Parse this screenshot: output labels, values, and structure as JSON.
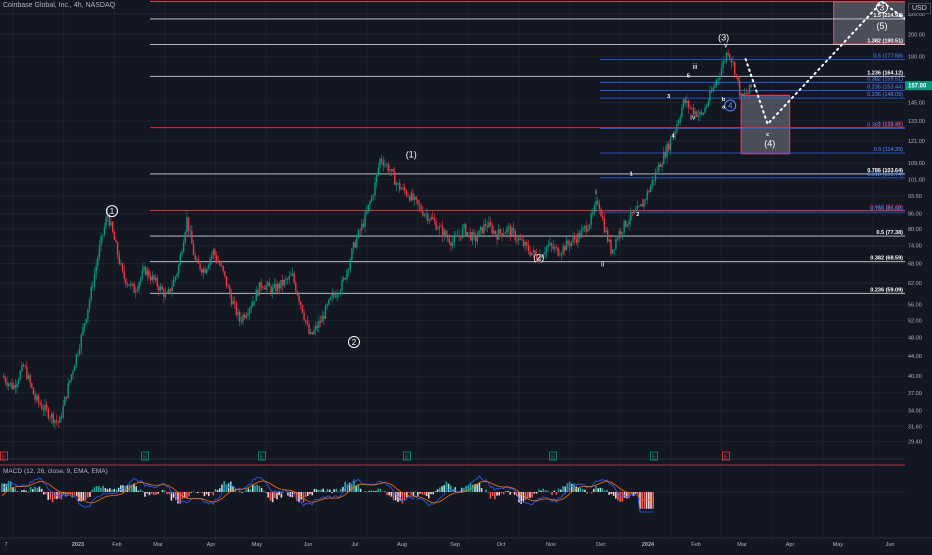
{
  "header": {
    "title": "Coinbase Global, Inc., 4h, NASDAQ",
    "currency": "USD"
  },
  "price_axis": {
    "ticks": [
      "220.00",
      "200.00",
      "180.00",
      "145.00",
      "133.00",
      "121.00",
      "109.00",
      "101.00",
      "93.50",
      "86.00",
      "80.00",
      "74.00",
      "68.00",
      "62.00",
      "56.00",
      "52.00",
      "48.00",
      "44.00",
      "40.00",
      "37.00",
      "34.00",
      "31.60",
      "29.40"
    ],
    "ticks_data": [
      220,
      200,
      180,
      145,
      133,
      121,
      109,
      101,
      93.5,
      86,
      80,
      74,
      68,
      62,
      56,
      52,
      48,
      44,
      40,
      37,
      34,
      31.6,
      29.4
    ],
    "last_price": "157.00",
    "last_price_color": "#089981",
    "log_scale": true
  },
  "time_axis": {
    "labels": [
      "7",
      "2023",
      "Feb",
      "Mar",
      "Apr",
      "May",
      "Jun",
      "Jul",
      "Aug",
      "Sep",
      "Oct",
      "Nov",
      "Dec",
      "2024",
      "Feb",
      "Mar",
      "Apr",
      "May",
      "Jun"
    ]
  },
  "chart_data": {
    "type": "candlestick",
    "symbol": "Coinbase Global, Inc.",
    "interval": "4h",
    "exchange": "NASDAQ",
    "y_scale": "log",
    "ylim": [
      28,
      235
    ],
    "x_labels": [
      "7",
      "2023",
      "Feb",
      "Mar",
      "Apr",
      "May",
      "Jun",
      "Jul",
      "Aug",
      "Sep",
      "Oct",
      "Nov",
      "Dec",
      "2024",
      "Feb",
      "Mar",
      "Apr",
      "May",
      "Jun"
    ],
    "price_path": [
      {
        "t": 0,
        "p": 40
      },
      {
        "t": 0.5,
        "p": 38
      },
      {
        "t": 1,
        "p": 42
      },
      {
        "t": 1.5,
        "p": 36
      },
      {
        "t": 2,
        "p": 34
      },
      {
        "t": 2.6,
        "p": 32
      },
      {
        "t": 3,
        "p": 38
      },
      {
        "t": 3.6,
        "p": 48
      },
      {
        "t": 4,
        "p": 58
      },
      {
        "t": 4.4,
        "p": 72
      },
      {
        "t": 4.8,
        "p": 86
      },
      {
        "t": 5.1,
        "p": 76
      },
      {
        "t": 5.5,
        "p": 64
      },
      {
        "t": 6,
        "p": 60
      },
      {
        "t": 6.5,
        "p": 66
      },
      {
        "t": 7,
        "p": 62
      },
      {
        "t": 7.5,
        "p": 58
      },
      {
        "t": 8,
        "p": 66
      },
      {
        "t": 8.4,
        "p": 84
      },
      {
        "t": 8.8,
        "p": 68
      },
      {
        "t": 9.2,
        "p": 66
      },
      {
        "t": 9.6,
        "p": 72
      },
      {
        "t": 10,
        "p": 66
      },
      {
        "t": 10.4,
        "p": 58
      },
      {
        "t": 10.8,
        "p": 52
      },
      {
        "t": 11.3,
        "p": 56
      },
      {
        "t": 11.8,
        "p": 62
      },
      {
        "t": 12.3,
        "p": 60
      },
      {
        "t": 12.8,
        "p": 62
      },
      {
        "t": 13.2,
        "p": 64
      },
      {
        "t": 13.6,
        "p": 56
      },
      {
        "t": 14,
        "p": 48
      },
      {
        "t": 14.5,
        "p": 52
      },
      {
        "t": 15,
        "p": 58
      },
      {
        "t": 15.5,
        "p": 62
      },
      {
        "t": 16,
        "p": 74
      },
      {
        "t": 16.5,
        "p": 84
      },
      {
        "t": 16.9,
        "p": 96
      },
      {
        "t": 17.2,
        "p": 112
      },
      {
        "t": 17.6,
        "p": 106
      },
      {
        "t": 18,
        "p": 98
      },
      {
        "t": 18.5,
        "p": 94
      },
      {
        "t": 19,
        "p": 88
      },
      {
        "t": 19.5,
        "p": 84
      },
      {
        "t": 20,
        "p": 79
      },
      {
        "t": 20.5,
        "p": 75
      },
      {
        "t": 21,
        "p": 80
      },
      {
        "t": 21.5,
        "p": 76
      },
      {
        "t": 22,
        "p": 82
      },
      {
        "t": 22.5,
        "p": 78
      },
      {
        "t": 23,
        "p": 80
      },
      {
        "t": 23.5,
        "p": 76
      },
      {
        "t": 24,
        "p": 72
      },
      {
        "t": 24.4,
        "p": 70
      },
      {
        "t": 24.8,
        "p": 74
      },
      {
        "t": 25.3,
        "p": 72
      },
      {
        "t": 25.8,
        "p": 75
      },
      {
        "t": 26.3,
        "p": 78
      },
      {
        "t": 26.8,
        "p": 84
      },
      {
        "t": 27.1,
        "p": 92
      },
      {
        "t": 27.4,
        "p": 80
      },
      {
        "t": 27.7,
        "p": 72
      },
      {
        "t": 28,
        "p": 78
      },
      {
        "t": 28.5,
        "p": 84
      },
      {
        "t": 29,
        "p": 88
      },
      {
        "t": 29.4,
        "p": 96
      },
      {
        "t": 29.8,
        "p": 106
      },
      {
        "t": 30.2,
        "p": 116
      },
      {
        "t": 30.6,
        "p": 128
      },
      {
        "t": 31,
        "p": 146
      },
      {
        "t": 31.4,
        "p": 140
      },
      {
        "t": 31.8,
        "p": 136
      },
      {
        "t": 32.2,
        "p": 150
      },
      {
        "t": 32.6,
        "p": 166
      },
      {
        "t": 33,
        "p": 186
      },
      {
        "t": 33.3,
        "p": 170
      },
      {
        "t": 33.6,
        "p": 148
      },
      {
        "t": 33.9,
        "p": 152
      },
      {
        "t": 34.1,
        "p": 157
      }
    ],
    "waves": [
      {
        "label": "1",
        "date_t": 5.0,
        "price": 87,
        "style": "circle"
      },
      {
        "label": "2",
        "date_t": 16.0,
        "price": 47,
        "style": "circle"
      },
      {
        "label": "(1)",
        "date_t": 18.6,
        "price": 112,
        "style": "plain"
      },
      {
        "label": "(2)",
        "date_t": 24.4,
        "price": 69,
        "style": "plain"
      },
      {
        "label": "(3)",
        "date_t": 32.8,
        "price": 194,
        "style": "plain"
      },
      {
        "label": "(4)",
        "date_t": 34.9,
        "price": 118,
        "style": "plain"
      },
      {
        "label": "(5)",
        "date_t": 40.0,
        "price": 205,
        "style": "plain"
      },
      {
        "label": "3",
        "date_t": 40.0,
        "price": 227,
        "style": "circle"
      },
      {
        "label": "4",
        "date_t": 33.1,
        "price": 143,
        "style": "circle-blue"
      },
      {
        "label": "i",
        "date_t": 27.0,
        "price": 94,
        "style": "small"
      },
      {
        "label": "ii",
        "date_t": 27.3,
        "price": 67,
        "style": "small"
      },
      {
        "label": "iii",
        "date_t": 31.5,
        "price": 170,
        "style": "small"
      },
      {
        "label": "iv",
        "date_t": 31.4,
        "price": 134,
        "style": "small"
      },
      {
        "label": "v",
        "date_t": 32.9,
        "price": 188,
        "style": "small"
      },
      {
        "label": "1",
        "date_t": 28.6,
        "price": 103,
        "style": "tiny"
      },
      {
        "label": "2",
        "date_t": 28.9,
        "price": 85,
        "style": "tiny"
      },
      {
        "label": "3",
        "date_t": 30.3,
        "price": 148,
        "style": "tiny"
      },
      {
        "label": "4",
        "date_t": 30.5,
        "price": 123,
        "style": "tiny"
      },
      {
        "label": "5",
        "date_t": 31.2,
        "price": 163,
        "style": "tiny"
      },
      {
        "label": "a",
        "date_t": 32.8,
        "price": 141,
        "style": "tiny"
      },
      {
        "label": "b",
        "date_t": 32.8,
        "price": 146,
        "style": "tiny"
      },
      {
        "label": "c",
        "date_t": 34.8,
        "price": 124,
        "style": "tiny"
      }
    ],
    "projection": [
      {
        "t": 33.8,
        "p": 178
      },
      {
        "t": 34.8,
        "p": 131
      },
      {
        "t": 40.0,
        "p": 233
      },
      {
        "t": 43.8,
        "p": 174
      }
    ],
    "fib_white": [
      {
        "label": "1.5 (214.92)",
        "price": 214.92
      },
      {
        "label": "1.382 (190.51)",
        "price": 190.51
      },
      {
        "label": "1.236 (164.12)",
        "price": 164.12
      },
      {
        "label": "0.786 (103.64)",
        "price": 103.64
      },
      {
        "label": "0.5 (77.38)",
        "price": 77.38
      },
      {
        "label": "0.382 (68.59)",
        "price": 68.59
      },
      {
        "label": "0.236 (59.09)",
        "price": 59.09
      }
    ],
    "fib_red": [
      {
        "label": "1 (128.86)",
        "price": 128.86
      },
      {
        "label": "0.618 (87.29)",
        "price": 87.29
      }
    ],
    "fib_blue": [
      {
        "label": "0.786 (86.58)",
        "price": 86.58
      },
      {
        "label": "0.618 (101.74)",
        "price": 101.74
      },
      {
        "label": "0.5 (114.39)",
        "price": 114.39
      },
      {
        "label": "0.382 (159.51)",
        "price": 159.51
      },
      {
        "label": "0.236 (153.44)",
        "price": 153.44
      },
      {
        "label": "0.236 (148.09)",
        "price": 148.09
      },
      {
        "label": "0.5 (177.58)",
        "price": 177.58
      },
      {
        "label": "0.382 (128.41)",
        "price": 128.41
      }
    ],
    "boxes": [
      {
        "name": "target-box-3",
        "t0": 37.8,
        "t1": 43.2,
        "p_top": 233,
        "p_bottom": 191
      },
      {
        "name": "target-box-4",
        "t0": 33.6,
        "t1": 35.8,
        "p_top": 150,
        "p_bottom": 114
      }
    ]
  },
  "macd": {
    "label": "MACD (12, 26, close, 9, EMA, EMA)",
    "values": [
      "4.62",
      "-1.37",
      "-3.75",
      "-4.57"
    ],
    "value_colors": [
      "#f23645",
      "#2a2e39",
      "#f23645",
      "#2962ff"
    ]
  },
  "event_markers": [
    "E",
    "E",
    "E",
    "E",
    "E",
    "E",
    "E"
  ]
}
